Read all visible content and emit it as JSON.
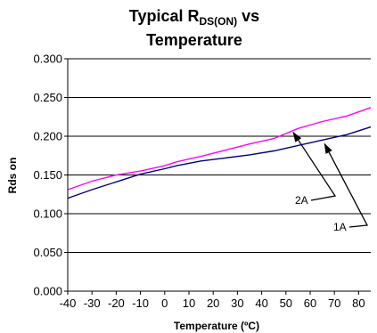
{
  "chart_data": {
    "type": "line",
    "title_main": "Typical R",
    "title_sub": "DS(ON)",
    "title_tail": " vs",
    "title_line2": "Temperature",
    "xlabel": "Temperature (ºC)",
    "ylabel": "Rds on",
    "xlim": [
      -40,
      85
    ],
    "ylim": [
      0,
      0.3
    ],
    "xticks": [
      -40,
      -30,
      -20,
      -10,
      0,
      10,
      20,
      30,
      40,
      50,
      60,
      70,
      80
    ],
    "xtick_labels": [
      "-40",
      "-30",
      "-20",
      "-10",
      "0",
      "10",
      "20",
      "30",
      "40",
      "50",
      "60",
      "70",
      "80"
    ],
    "yticks": [
      0,
      0.05,
      0.1,
      0.15,
      0.2,
      0.25,
      0.3
    ],
    "ytick_labels": [
      "0.000",
      "0.050",
      "0.100",
      "0.150",
      "0.200",
      "0.250",
      "0.300"
    ],
    "grid": "horizontal",
    "series": [
      {
        "name": "2A",
        "color": "#ff00ff",
        "x": [
          -40,
          -30,
          -20,
          -10,
          0,
          5,
          15,
          25,
          35,
          45,
          55,
          65,
          75,
          85
        ],
        "y": [
          0.131,
          0.142,
          0.15,
          0.155,
          0.162,
          0.167,
          0.174,
          0.182,
          0.19,
          0.197,
          0.21,
          0.219,
          0.226,
          0.237
        ]
      },
      {
        "name": "1A",
        "color": "#000080",
        "x": [
          -40,
          -30,
          -20,
          -10,
          0,
          5,
          15,
          25,
          35,
          45,
          55,
          65,
          75,
          85
        ],
        "y": [
          0.12,
          0.131,
          0.141,
          0.151,
          0.158,
          0.162,
          0.168,
          0.172,
          0.176,
          0.181,
          0.188,
          0.195,
          0.202,
          0.212
        ]
      }
    ],
    "annotations": [
      {
        "label": "2A",
        "target_x": 53,
        "target_y": 0.205
      },
      {
        "label": "1A",
        "target_x": 66,
        "target_y": 0.19
      }
    ]
  }
}
